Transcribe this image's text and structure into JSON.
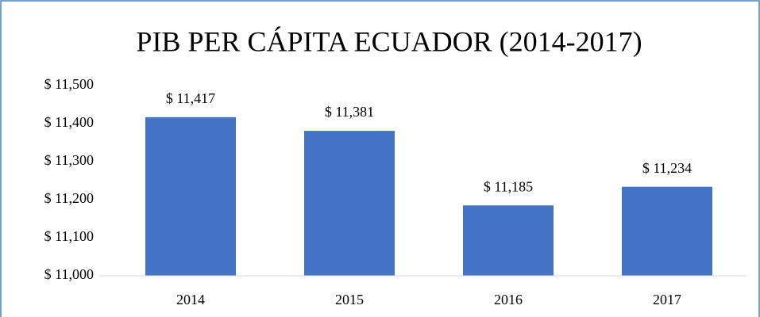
{
  "chart_data": {
    "type": "bar",
    "title": "PIB PER CÁPITA ECUADOR (2014-2017)",
    "categories": [
      "2014",
      "2015",
      "2016",
      "2017"
    ],
    "values": [
      11417,
      11381,
      11185,
      11234
    ],
    "value_labels": [
      "$ 11,417",
      "$ 11,381",
      "$ 11,185",
      "$ 11,234"
    ],
    "color": "#4472c4",
    "ylim": [
      11000,
      11500
    ],
    "yticks": [
      {
        "value": 11000,
        "label": "$ 11,000"
      },
      {
        "value": 11100,
        "label": "$ 11,100"
      },
      {
        "value": 11200,
        "label": "$ 11,200"
      },
      {
        "value": 11300,
        "label": "$ 11,300"
      },
      {
        "value": 11400,
        "label": "$ 11,400"
      },
      {
        "value": 11500,
        "label": "$ 11,500"
      }
    ],
    "grid": false
  }
}
